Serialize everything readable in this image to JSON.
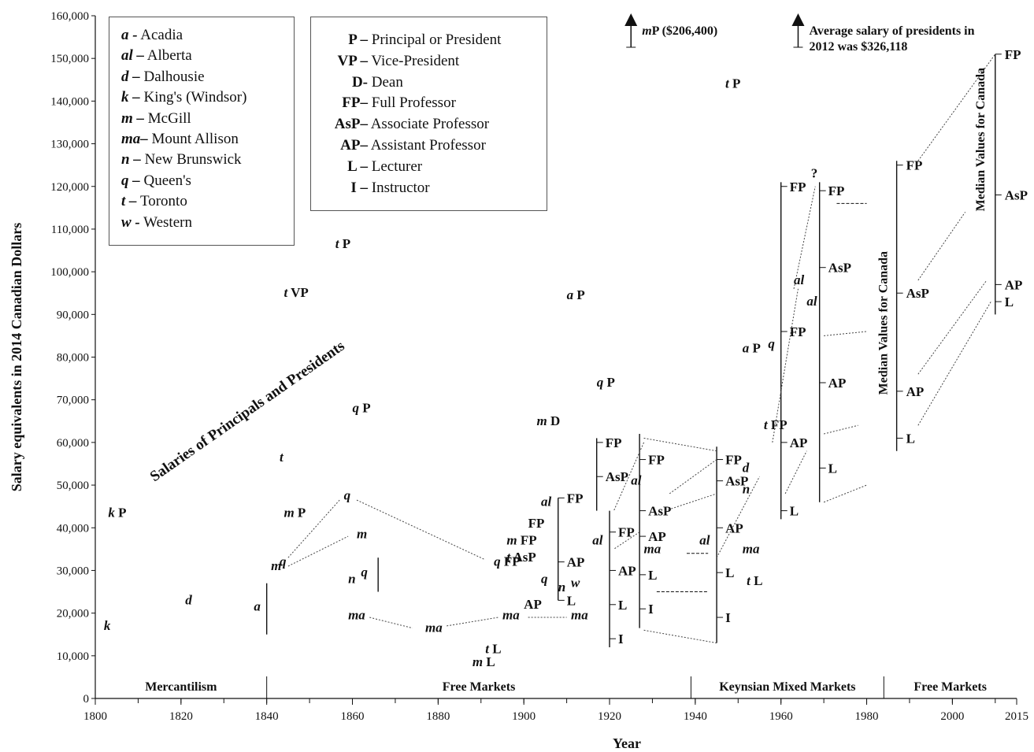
{
  "chart_data": {
    "type": "scatter",
    "title": "",
    "xlabel": "Year",
    "ylabel": "Salary equivalents in 2014 Canadian Dollars",
    "xlim": [
      1800,
      2015
    ],
    "ylim": [
      0,
      160000
    ],
    "x_ticks": [
      1800,
      1820,
      1840,
      1860,
      1880,
      1900,
      1920,
      1940,
      1960,
      1980,
      2000,
      2015
    ],
    "y_ticks": [
      0,
      10000,
      20000,
      30000,
      40000,
      50000,
      60000,
      70000,
      80000,
      90000,
      100000,
      110000,
      120000,
      130000,
      140000,
      150000,
      160000
    ],
    "y_tick_labels": [
      "0",
      "10,000",
      "20,000",
      "30,000",
      "40,000",
      "50,000",
      "60,000",
      "70,000",
      "80,000",
      "90,000",
      "100,000",
      "110,000",
      "120,000",
      "130,000",
      "140,000",
      "150,000",
      "160,000"
    ],
    "eras": [
      {
        "label": "Mercantilism",
        "from": 1800,
        "to": 1840
      },
      {
        "label": "Free Markets",
        "from": 1840,
        "to": 1939
      },
      {
        "label": "Keynsian Mixed Markets",
        "from": 1939,
        "to": 1984
      },
      {
        "label": "Free Markets",
        "from": 1984,
        "to": 2015
      }
    ],
    "diagonal_annotation": "Salaries of Principals and Presidents",
    "legend_universities": [
      {
        "key": "a -",
        "name": "Acadia"
      },
      {
        "key": "al –",
        "name": "Alberta"
      },
      {
        "key": "d –",
        "name": "Dalhousie"
      },
      {
        "key": "k –",
        "name": "King's (Windsor)"
      },
      {
        "key": "m –",
        "name": "McGill"
      },
      {
        "key": "ma–",
        "name": "Mount Allison"
      },
      {
        "key": "n –",
        "name": "New Brunswick"
      },
      {
        "key": "q –",
        "name": "Queen's"
      },
      {
        "key": "t –",
        "name": "Toronto"
      },
      {
        "key": "w -",
        "name": "Western"
      }
    ],
    "legend_ranks": [
      {
        "key": "P –",
        "name": "Principal or President"
      },
      {
        "key": "VP –",
        "name": "Vice-President"
      },
      {
        "key": "D-",
        "name": "Dean"
      },
      {
        "key": "FP–",
        "name": "Full Professor"
      },
      {
        "key": "AsP–",
        "name": "Associate Professor"
      },
      {
        "key": "AP–",
        "name": "Assistant Professor"
      },
      {
        "key": "L –",
        "name": "Lecturer"
      },
      {
        "key": "I –",
        "name": "Instructor"
      }
    ],
    "offscale_notes": [
      {
        "uni": "m",
        "rank": "P ($206,400)",
        "x": 1925
      },
      {
        "text": "Average salary of presidents in 2012 was $326,118",
        "x": 1964
      }
    ],
    "points": [
      {
        "uni": "k",
        "rank": "P",
        "x": 1803,
        "y": 43500
      },
      {
        "uni": "k",
        "rank": "",
        "x": 1802,
        "y": 17000
      },
      {
        "uni": "d",
        "rank": "",
        "x": 1821,
        "y": 23000
      },
      {
        "uni": "t",
        "rank": "VP",
        "x": 1844,
        "y": 95000
      },
      {
        "uni": "t",
        "rank": "P",
        "x": 1856,
        "y": 106500
      },
      {
        "uni": "t",
        "rank": "",
        "x": 1843,
        "y": 56500
      },
      {
        "uni": "m",
        "rank": "P",
        "x": 1844,
        "y": 43500
      },
      {
        "uni": "q",
        "rank": "P",
        "x": 1860,
        "y": 68000
      },
      {
        "uni": "a",
        "rank": "",
        "x": 1837,
        "y": 21500
      },
      {
        "uni": "m",
        "rank": "",
        "x": 1841,
        "y": 31000
      },
      {
        "uni": "q",
        "rank": "",
        "x": 1843,
        "y": 32000
      },
      {
        "uni": "q",
        "rank": "",
        "x": 1858,
        "y": 47500
      },
      {
        "uni": "m",
        "rank": "",
        "x": 1861,
        "y": 38500
      },
      {
        "uni": "n",
        "rank": "",
        "x": 1859,
        "y": 28000
      },
      {
        "uni": "q",
        "rank": "",
        "x": 1862,
        "y": 29500
      },
      {
        "uni": "ma",
        "rank": "",
        "x": 1859,
        "y": 19500
      },
      {
        "uni": "ma",
        "rank": "",
        "x": 1877,
        "y": 16500
      },
      {
        "uni": "q",
        "rank": "FP",
        "x": 1893,
        "y": 32000
      },
      {
        "uni": "ma",
        "rank": "",
        "x": 1895,
        "y": 19500
      },
      {
        "uni": "t",
        "rank": "L",
        "x": 1891,
        "y": 11500
      },
      {
        "uni": "m",
        "rank": "L",
        "x": 1888,
        "y": 8500
      },
      {
        "uni": "a",
        "rank": "P",
        "x": 1910,
        "y": 94500
      },
      {
        "uni": "q",
        "rank": "P",
        "x": 1917,
        "y": 74000
      },
      {
        "uni": "m",
        "rank": "D",
        "x": 1903,
        "y": 65000
      },
      {
        "uni": "t",
        "rank": "P",
        "x": 1947,
        "y": 144000
      },
      {
        "uni": "a",
        "rank": "P",
        "x": 1951,
        "y": 82000
      },
      {
        "uni": "t",
        "rank": "FP",
        "x": 1956,
        "y": 64000
      }
    ],
    "median_canada_1990": [
      {
        "rank": "FP",
        "y": 125000
      },
      {
        "rank": "AsP",
        "y": 95000
      },
      {
        "rank": "AP",
        "y": 72000
      },
      {
        "rank": "L",
        "y": 61000
      }
    ],
    "median_canada_2012": [
      {
        "rank": "FP",
        "y": 151000
      },
      {
        "rank": "AsP",
        "y": 118000
      },
      {
        "rank": "AP",
        "y": 97000
      },
      {
        "rank": "L",
        "y": 93000
      }
    ],
    "median_label": "Median Values for Canada"
  }
}
